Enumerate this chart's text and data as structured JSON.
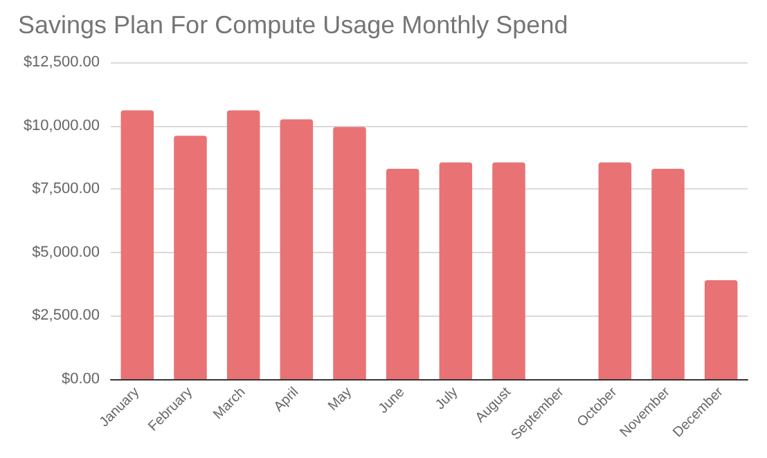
{
  "chart_data": {
    "type": "bar",
    "title": "Savings Plan For Compute Usage Monthly Spend",
    "categories": [
      "January",
      "February",
      "March",
      "April",
      "May",
      "June",
      "July",
      "August",
      "September",
      "October",
      "November",
      "December"
    ],
    "values": [
      10600,
      9600,
      10600,
      10250,
      9950,
      8300,
      8550,
      8550,
      null,
      8550,
      8300,
      3900
    ],
    "color": "#e97275",
    "ylim": [
      0,
      12500
    ],
    "yticks": [
      {
        "value": 0,
        "label": "$0.00"
      },
      {
        "value": 2500,
        "label": "$2,500.00"
      },
      {
        "value": 5000,
        "label": "$5,000.00"
      },
      {
        "value": 7500,
        "label": "$7,500.00"
      },
      {
        "value": 10000,
        "label": "$10,000.00"
      },
      {
        "value": 12500,
        "label": "$12,500.00"
      }
    ],
    "grid": "y"
  }
}
